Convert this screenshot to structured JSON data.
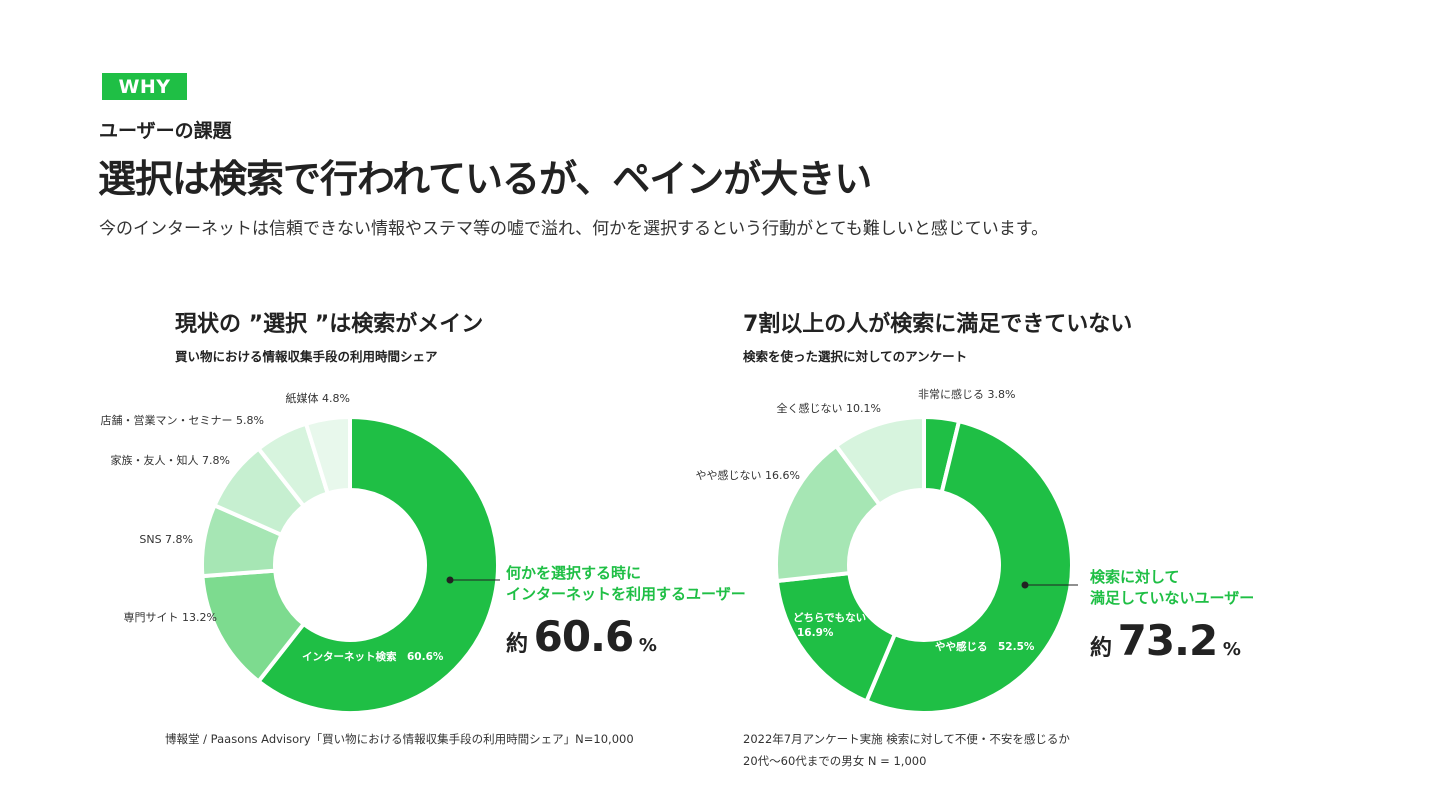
{
  "header": {
    "tag": "WHY",
    "kicker": "ユーザーの課題",
    "headline": "選択は検索で行われているが、ペインが大きい",
    "lead": "今のインターネットは信頼できない情報やステマ等の嘘で溢れ、何かを選択するという行動がとても難しいと感じています。"
  },
  "left_panel": {
    "title": "現状の ”選択 ”は検索がメイン",
    "subtitle": "買い物における情報収集手段の利用時間シェア",
    "callout_line1": "何かを選択する時に",
    "callout_line2": "インターネットを利用するユーザー",
    "stat_prefix": "約",
    "stat_value": "60.6",
    "stat_unit": "%",
    "source": "博報堂 / Paasons Advisory「買い物における情報収集手段の利用時間シェア」N=10,000"
  },
  "right_panel": {
    "title": "7割以上の人が検索に満足できていない",
    "subtitle": "検索を使った選択に対してのアンケート",
    "callout_line1": "検索に対して",
    "callout_line2": "満足していないユーザー",
    "stat_prefix": "約",
    "stat_value": "73.2",
    "stat_unit": "%",
    "note_line1": "2022年7月アンケート実施 検索に対して不便・不安を感じるか",
    "note_line2": "20代〜60代までの男女 N = 1,000"
  },
  "colors": {
    "brand_green": "#1fbf45",
    "text": "#222222"
  },
  "chart_data": [
    {
      "type": "pie",
      "donut": true,
      "title": "現状の ”選択 ”は検索がメイン",
      "subtitle": "買い物における情報収集手段の利用時間シェア",
      "slices": [
        {
          "label": "インターネット検索",
          "value": 60.6,
          "display": "インターネット検索 60.6%",
          "color": "#1fbf45",
          "inside": true
        },
        {
          "label": "専門サイト",
          "value": 13.2,
          "display": "専門サイト 13.2%",
          "color": "#7ddb8f"
        },
        {
          "label": "SNS",
          "value": 7.8,
          "display": "SNS 7.8%",
          "color": "#a6e6b4"
        },
        {
          "label": "家族・友人・知人",
          "value": 7.8,
          "display": "家族・友人・知人 7.8%",
          "color": "#c6efd0"
        },
        {
          "label": "店舗・営業マン・セミナー",
          "value": 5.8,
          "display": "店舗・営業マン・セミナー 5.8%",
          "color": "#d7f4de"
        },
        {
          "label": "紙媒体",
          "value": 4.8,
          "display": "紙媒体 4.8%",
          "color": "#e8f8ec"
        }
      ]
    },
    {
      "type": "pie",
      "donut": true,
      "title": "7割以上の人が検索に満足できていない",
      "subtitle": "検索を使った選択に対してのアンケート",
      "slices": [
        {
          "label": "非常に感じる",
          "value": 3.8,
          "display": "非常に感じる 3.8%",
          "color": "#1fbf45"
        },
        {
          "label": "やや感じる",
          "value": 52.5,
          "display": "やや感じる 52.5%",
          "color": "#1fbf45",
          "inside": true
        },
        {
          "label": "どちらでもない",
          "value": 16.9,
          "display": "どちらでもない 16.9%",
          "color": "#1fbf45",
          "inside": true
        },
        {
          "label": "やや感じない",
          "value": 16.6,
          "display": "やや感じない 16.6%",
          "color": "#a6e6b4"
        },
        {
          "label": "全く感じない",
          "value": 10.1,
          "display": "全く感じない 10.1%",
          "color": "#d7f4de"
        }
      ]
    }
  ]
}
